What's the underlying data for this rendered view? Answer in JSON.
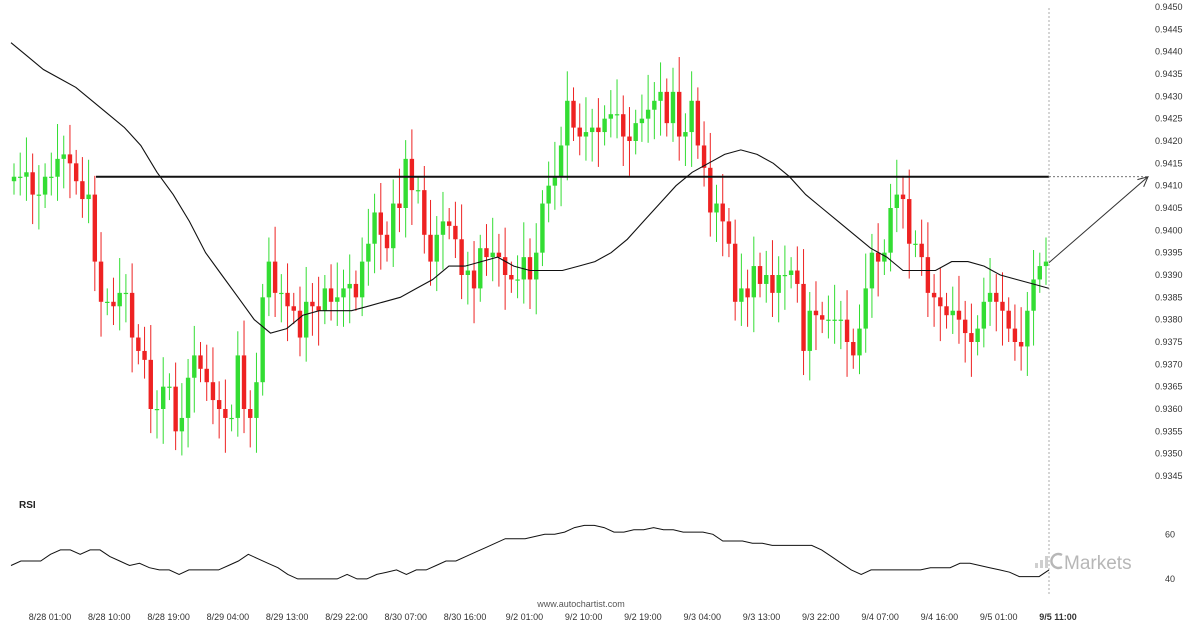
{
  "chart_data": {
    "type": "candlestick",
    "instrument_price_axis": {
      "ylim": [
        0.9345,
        0.945
      ],
      "tick_labels": [
        "0.9450",
        "0.9445",
        "0.9440",
        "0.9435",
        "0.9430",
        "0.9425",
        "0.9420",
        "0.9415",
        "0.9410",
        "0.9405",
        "0.9400",
        "0.9395",
        "0.9390",
        "0.9385",
        "0.9380",
        "0.9375",
        "0.9370",
        "0.9365",
        "0.9360",
        "0.9355",
        "0.9350",
        "0.9345"
      ]
    },
    "x_tick_labels": [
      "8/28 01:00",
      "8/28 10:00",
      "8/28 19:00",
      "8/29 04:00",
      "8/29 13:00",
      "8/29 22:00",
      "8/30 07:00",
      "8/30 16:00",
      "9/2 01:00",
      "9/2 10:00",
      "9/2 19:00",
      "9/3 04:00",
      "9/3 13:00",
      "9/3 22:00",
      "9/4 07:00",
      "9/4 16:00",
      "9/5 01:00",
      "9/5 11:00"
    ],
    "colors": {
      "up": "#33dd33",
      "down": "#ee2222",
      "line": "#111111"
    },
    "resistance_level": 0.9412,
    "projected_target": 0.9412,
    "closes": [
      0.9412,
      0.9412,
      0.9413,
      0.9408,
      0.9408,
      0.9412,
      0.9412,
      0.9416,
      0.9417,
      0.9415,
      0.9411,
      0.9407,
      0.9408,
      0.9393,
      0.9384,
      0.9384,
      0.9383,
      0.9386,
      0.9386,
      0.9376,
      0.9373,
      0.9371,
      0.936,
      0.936,
      0.9365,
      0.9365,
      0.9355,
      0.9358,
      0.9367,
      0.9372,
      0.9369,
      0.9366,
      0.9362,
      0.936,
      0.9358,
      0.9358,
      0.9372,
      0.936,
      0.9358,
      0.9366,
      0.9385,
      0.9393,
      0.9386,
      0.9386,
      0.9383,
      0.9382,
      0.9376,
      0.9384,
      0.9383,
      0.9382,
      0.9387,
      0.9384,
      0.9385,
      0.9387,
      0.9388,
      0.9385,
      0.9393,
      0.9397,
      0.9404,
      0.9399,
      0.9396,
      0.9406,
      0.9405,
      0.9416,
      0.9409,
      0.9409,
      0.9399,
      0.9393,
      0.9399,
      0.9402,
      0.9401,
      0.9398,
      0.939,
      0.9391,
      0.9387,
      0.9396,
      0.9394,
      0.9395,
      0.9394,
      0.939,
      0.9389,
      0.9389,
      0.9394,
      0.9389,
      0.9395,
      0.9406,
      0.941,
      0.9412,
      0.9419,
      0.9429,
      0.9423,
      0.9421,
      0.9422,
      0.9423,
      0.9422,
      0.9425,
      0.9426,
      0.9426,
      0.9421,
      0.942,
      0.9424,
      0.9425,
      0.9427,
      0.9429,
      0.9431,
      0.9424,
      0.9431,
      0.9421,
      0.9422,
      0.9429,
      0.9419,
      0.9414,
      0.9404,
      0.9406,
      0.9402,
      0.9397,
      0.9384,
      0.9387,
      0.9385,
      0.9392,
      0.9388,
      0.939,
      0.9386,
      0.939,
      0.939,
      0.9391,
      0.9388,
      0.9373,
      0.9382,
      0.9381,
      0.938,
      0.938,
      0.938,
      0.938,
      0.9375,
      0.9372,
      0.9378,
      0.9387,
      0.9395,
      0.9393,
      0.9395,
      0.9405,
      0.9408,
      0.9407,
      0.9397,
      0.9397,
      0.9394,
      0.9386,
      0.9385,
      0.9383,
      0.9381,
      0.9382,
      0.938,
      0.9377,
      0.9375,
      0.9378,
      0.9384,
      0.9386,
      0.9384,
      0.9382,
      0.9378,
      0.9375,
      0.9374,
      0.9382,
      0.9389,
      0.9392,
      0.9393
    ],
    "ma": [
      0.9442,
      0.9439,
      0.9436,
      0.9434,
      0.9432,
      0.9429,
      0.9426,
      0.9423,
      0.9419,
      0.9413,
      0.9408,
      0.9402,
      0.9395,
      0.939,
      0.9385,
      0.938,
      0.9377,
      0.9378,
      0.9381,
      0.9382,
      0.9382,
      0.9382,
      0.9383,
      0.9384,
      0.9385,
      0.9387,
      0.9389,
      0.9392,
      0.9392,
      0.9393,
      0.9394,
      0.9392,
      0.9391,
      0.9391,
      0.9391,
      0.9392,
      0.9393,
      0.9395,
      0.9398,
      0.9402,
      0.9406,
      0.941,
      0.9413,
      0.9415,
      0.9417,
      0.9418,
      0.9417,
      0.9415,
      0.9412,
      0.9408,
      0.9405,
      0.9402,
      0.9399,
      0.9396,
      0.9394,
      0.9391,
      0.9391,
      0.9391,
      0.9393,
      0.9393,
      0.9392,
      0.939,
      0.9389,
      0.9388,
      0.9387
    ],
    "rsi": {
      "label": "RSI",
      "tick_labels": [
        "60",
        "40"
      ],
      "ylim": [
        35,
        70
      ],
      "values": [
        46,
        48,
        48,
        48,
        51,
        53,
        53,
        51,
        53,
        53,
        50,
        48,
        46,
        47,
        45,
        44,
        44,
        42,
        44,
        44,
        44,
        44,
        46,
        48,
        51,
        49,
        47,
        45,
        42,
        40,
        40,
        40,
        40,
        40,
        42,
        40,
        40,
        42,
        43,
        44,
        42,
        44,
        44,
        46,
        48,
        48,
        50,
        52,
        54,
        56,
        58,
        58,
        58,
        59,
        60,
        60,
        61,
        63,
        64,
        64,
        63,
        61,
        61,
        62,
        62,
        63,
        62,
        62,
        61,
        61,
        61,
        60,
        57,
        57,
        57,
        56,
        56,
        55,
        55,
        55,
        55,
        55,
        53,
        50,
        47,
        44,
        42,
        44,
        44,
        44,
        44,
        44,
        44,
        45,
        45,
        45,
        47,
        47,
        46,
        45,
        44,
        43,
        41,
        41,
        41,
        44
      ]
    }
  },
  "watermark": "www.autochartist.com",
  "brand": "Markets"
}
